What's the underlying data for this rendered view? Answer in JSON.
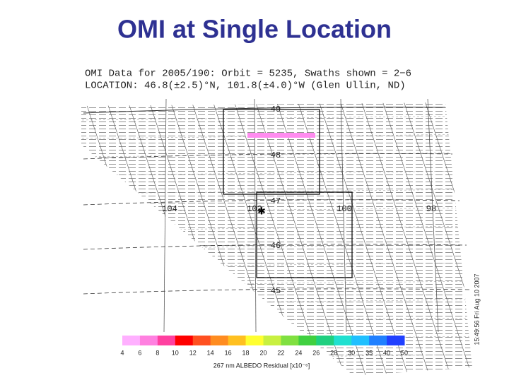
{
  "title": "OMI at Single Location",
  "plot": {
    "header": [
      "OMI Data for 2005/190:  Orbit = 5235, Swaths shown = 2−6",
      "LOCATION:  46.8(±2.5)°N, 101.8(±4.0)°W (Glen Ullin, ND)"
    ],
    "lat_labels": [
      "49",
      "48",
      "47",
      "46",
      "45"
    ],
    "lon_labels": [
      "104",
      "102",
      "100",
      "98"
    ],
    "timestamp": "15:49:56 Fri Aug 10 2007"
  },
  "colorbar": {
    "labels": [
      "4",
      "6",
      "8",
      "10",
      "12",
      "14",
      "16",
      "18",
      "20",
      "22",
      "24",
      "26",
      "28",
      "30",
      "35",
      "40",
      "50"
    ],
    "colors": [
      "#ffb0ff",
      "#ff80e0",
      "#ff40a0",
      "#ff0000",
      "#ff5020",
      "#ff8c20",
      "#ffc020",
      "#ffff30",
      "#c8f040",
      "#80e040",
      "#40d040",
      "#20d080",
      "#20e0d0",
      "#20c0ff",
      "#2080ff",
      "#2040ff"
    ],
    "title": "267 nm ALBEDO Residual [x10⁻⁶]"
  }
}
